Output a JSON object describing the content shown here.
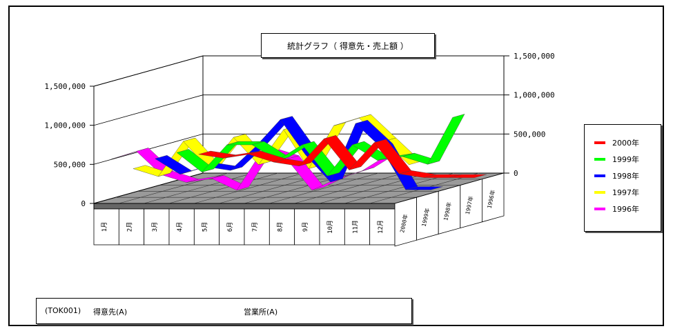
{
  "chart_data": {
    "type": "line",
    "title": "統計グラフ（ 得意先・売上額 ）",
    "categories": [
      "1月",
      "2月",
      "3月",
      "4月",
      "5月",
      "6月",
      "7月",
      "8月",
      "9月",
      "10月",
      "11月",
      "12月"
    ],
    "series_axis_labels": [
      "2000年",
      "1999年",
      "1998年",
      "1997年",
      "1996年"
    ],
    "series": [
      {
        "name": "2000年",
        "color": "#ff0000",
        "values": [
          300000,
          250000,
          300000,
          200000,
          150000,
          500000,
          100000,
          450000,
          50000,
          0,
          0,
          0
        ]
      },
      {
        "name": "1999年",
        "color": "#00ff00",
        "values": [
          400000,
          150000,
          500000,
          500000,
          300000,
          500000,
          100000,
          500000,
          300000,
          350000,
          250000,
          850000
        ]
      },
      {
        "name": "1998年",
        "color": "#0000ff",
        "values": [
          400000,
          200000,
          300000,
          250000,
          550000,
          900000,
          450000,
          100000,
          850000,
          550000,
          0,
          0
        ]
      },
      {
        "name": "1997年",
        "color": "#ffff00",
        "values": [
          350000,
          250000,
          700000,
          350000,
          750000,
          400000,
          850000,
          350000,
          900000,
          1000000,
          700000,
          400000
        ]
      },
      {
        "name": "1996年",
        "color": "#ff00ff",
        "values": [
          550000,
          650000,
          350000,
          250000,
          300000,
          150000,
          650000,
          550000,
          150000,
          300000,
          400000,
          600000
        ]
      }
    ],
    "y_ticks_left": [
      "0",
      "500,000",
      "1,000,000",
      "1,500,000"
    ],
    "y_ticks_right": [
      "0",
      "500,000",
      "1,000,000",
      "1,500,000"
    ],
    "ylim": [
      0,
      1500000
    ],
    "legend_position": "right",
    "grid": true
  },
  "info": {
    "code": "(TOK001)",
    "customer": "得意先(A)",
    "office": "営業所(A)"
  }
}
